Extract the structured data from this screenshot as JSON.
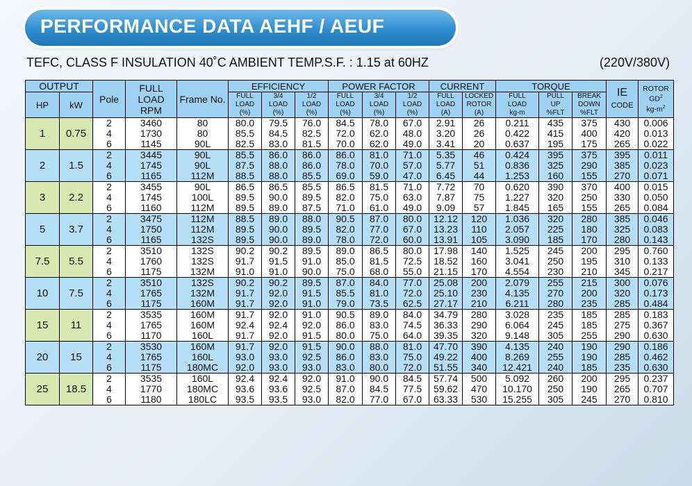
{
  "title": "PERFORMANCE DATA  AEHF / AEUF",
  "subtitle": "TEFC, CLASS F INSULATION 40˚C AMBIENT TEMP.S.F. : 1.15 at 60HZ",
  "voltage": "(220V/380V)",
  "headers": {
    "output": "OUTPUT",
    "hp": "HP",
    "kw": "kW",
    "pole": "Pole",
    "full_load_rpm": [
      "FULL",
      "LOAD",
      "RPM"
    ],
    "frame_no": "Frame No.",
    "efficiency": "EFFICIENCY",
    "power_factor": "POWER FACTOR",
    "current": "CURRENT",
    "torque": "TORQUE",
    "ie_code": [
      "IE",
      "CODE"
    ],
    "rotor": [
      "ROTOR",
      "GD",
      "2",
      "kg-m",
      "2"
    ],
    "sub": {
      "eff_full": [
        "FULL",
        "LOAD",
        "(%)"
      ],
      "eff_34": [
        "3/4",
        "LOAD",
        "(%)"
      ],
      "eff_12": [
        "1/2",
        "LOAD",
        "(%)"
      ],
      "pf_full": [
        "FULL",
        "LOAD",
        "(%)"
      ],
      "pf_34": [
        "3/4",
        "LOAD",
        "(%)"
      ],
      "pf_12": [
        "1/2",
        "LOAD",
        "(%)"
      ],
      "cur_full": [
        "FULL",
        "LOAD",
        "(A)"
      ],
      "cur_locked": [
        "LOCKED",
        "ROTOR",
        "(A)"
      ],
      "tq_full": [
        "FULL",
        "LOAD",
        "kg-m"
      ],
      "tq_pull": [
        "PULL",
        "UP",
        "%FLT"
      ],
      "tq_break": [
        "BREAK",
        "DOWN",
        "%FLT"
      ]
    }
  },
  "groups": [
    {
      "hp": "1",
      "kw": "0.75",
      "color": "green",
      "rows": [
        [
          "2",
          "3460",
          "80",
          "80.0",
          "79.5",
          "76.0",
          "84.5",
          "78.0",
          "67.0",
          "2.91",
          "26",
          "0.211",
          "435",
          "375",
          "430",
          "0.006"
        ],
        [
          "4",
          "1730",
          "80",
          "85.5",
          "84.5",
          "82.5",
          "72.0",
          "62.0",
          "48.0",
          "3.20",
          "26",
          "0.422",
          "415",
          "400",
          "420",
          "0.013"
        ],
        [
          "6",
          "1145",
          "90L",
          "82.5",
          "83.0",
          "81.5",
          "70.0",
          "62.0",
          "49.0",
          "3.41",
          "20",
          "0.637",
          "195",
          "175",
          "265",
          "0.022"
        ]
      ]
    },
    {
      "hp": "2",
      "kw": "1.5",
      "color": "blue",
      "rows": [
        [
          "2",
          "3445",
          "90L",
          "85.5",
          "86.0",
          "86.0",
          "86.0",
          "81.0",
          "71.0",
          "5.35",
          "46",
          "0.424",
          "395",
          "375",
          "395",
          "0.011"
        ],
        [
          "4",
          "1745",
          "90L",
          "87.5",
          "88.0",
          "86.0",
          "78.0",
          "70.0",
          "57.0",
          "5.77",
          "51",
          "0.836",
          "325",
          "290",
          "385",
          "0.023"
        ],
        [
          "6",
          "1165",
          "112M",
          "88.5",
          "88.0",
          "85.5",
          "69.0",
          "59.0",
          "47.0",
          "6.45",
          "44",
          "1.253",
          "160",
          "155",
          "270",
          "0.071"
        ]
      ]
    },
    {
      "hp": "3",
      "kw": "2.2",
      "color": "green",
      "rows": [
        [
          "2",
          "3455",
          "90L",
          "86.5",
          "86.5",
          "85.5",
          "86.5",
          "81.5",
          "71.0",
          "7.72",
          "70",
          "0.620",
          "390",
          "370",
          "400",
          "0.015"
        ],
        [
          "4",
          "1745",
          "100L",
          "89.5",
          "90.0",
          "89.5",
          "82.0",
          "75.0",
          "63.0",
          "7.87",
          "75",
          "1.227",
          "320",
          "250",
          "330",
          "0.050"
        ],
        [
          "6",
          "1160",
          "112M",
          "89.5",
          "89.0",
          "87.5",
          "71.0",
          "61.0",
          "49.0",
          "9.09",
          "57",
          "1.845",
          "165",
          "155",
          "265",
          "0.084"
        ]
      ]
    },
    {
      "hp": "5",
      "kw": "3.7",
      "color": "blue",
      "rows": [
        [
          "2",
          "3475",
          "112M",
          "88.5",
          "89.0",
          "88.0",
          "90.5",
          "87.0",
          "80.0",
          "12.12",
          "120",
          "1.036",
          "320",
          "280",
          "385",
          "0.046"
        ],
        [
          "4",
          "1750",
          "112M",
          "89.5",
          "90.0",
          "89.5",
          "82.0",
          "77.0",
          "67.0",
          "13.23",
          "110",
          "2.057",
          "225",
          "180",
          "325",
          "0.083"
        ],
        [
          "6",
          "1165",
          "132S",
          "89.5",
          "90.0",
          "89.0",
          "78.0",
          "72.0",
          "60.0",
          "13.91",
          "105",
          "3.090",
          "185",
          "170",
          "280",
          "0.143"
        ]
      ]
    },
    {
      "hp": "7.5",
      "kw": "5.5",
      "color": "green",
      "rows": [
        [
          "2",
          "3510",
          "132S",
          "90.2",
          "90.2",
          "89.5",
          "89.0",
          "86.5",
          "80.0",
          "17.98",
          "140",
          "1.525",
          "245",
          "200",
          "295",
          "0.760"
        ],
        [
          "4",
          "1760",
          "132S",
          "91.7",
          "91.5",
          "91.0",
          "85.0",
          "81.5",
          "72.5",
          "18.52",
          "160",
          "3.041",
          "250",
          "195",
          "310",
          "0.133"
        ],
        [
          "6",
          "1175",
          "132M",
          "91.0",
          "91.0",
          "90.0",
          "75.0",
          "68.0",
          "55.0",
          "21.15",
          "170",
          "4.554",
          "230",
          "210",
          "345",
          "0.217"
        ]
      ]
    },
    {
      "hp": "10",
      "kw": "7.5",
      "color": "blue",
      "rows": [
        [
          "2",
          "3510",
          "132S",
          "90.2",
          "90.2",
          "89.5",
          "87.0",
          "84.0",
          "77.0",
          "25.08",
          "200",
          "2.079",
          "255",
          "215",
          "300",
          "0.076"
        ],
        [
          "4",
          "1765",
          "132M",
          "91.7",
          "92.0",
          "91.5",
          "85.5",
          "81.0",
          "72.0",
          "25.10",
          "230",
          "4.135",
          "270",
          "200",
          "320",
          "0.173"
        ],
        [
          "6",
          "1175",
          "160M",
          "91.7",
          "92.0",
          "91.0",
          "79.0",
          "73.5",
          "62.5",
          "27.17",
          "210",
          "6.211",
          "280",
          "235",
          "285",
          "0.484"
        ]
      ]
    },
    {
      "hp": "15",
      "kw": "11",
      "color": "green",
      "rows": [
        [
          "2",
          "3535",
          "160M",
          "91.7",
          "92.0",
          "91.0",
          "90.5",
          "89.0",
          "84.0",
          "34.79",
          "280",
          "3.028",
          "235",
          "185",
          "285",
          "0.183"
        ],
        [
          "4",
          "1765",
          "160M",
          "92.4",
          "92.4",
          "92.0",
          "86.0",
          "83.0",
          "74.5",
          "36.33",
          "290",
          "6.064",
          "245",
          "185",
          "275",
          "0.367"
        ],
        [
          "6",
          "1170",
          "160L",
          "91.7",
          "92.0",
          "91.5",
          "80.0",
          "75.0",
          "64.0",
          "39.35",
          "320",
          "9.148",
          "305",
          "255",
          "290",
          "0.630"
        ]
      ]
    },
    {
      "hp": "20",
      "kw": "15",
      "color": "blue",
      "rows": [
        [
          "2",
          "3530",
          "160M",
          "91.7",
          "92.0",
          "91.5",
          "90.0",
          "88.0",
          "81.0",
          "47.70",
          "390",
          "4.135",
          "240",
          "190",
          "290",
          "0.186"
        ],
        [
          "4",
          "1765",
          "160L",
          "93.0",
          "93.0",
          "92.5",
          "86.0",
          "83.0",
          "75.0",
          "49.22",
          "400",
          "8.269",
          "255",
          "190",
          "285",
          "0.462"
        ],
        [
          "6",
          "1175",
          "180MC",
          "92.0",
          "93.0",
          "93.0",
          "83.0",
          "80.0",
          "72.0",
          "51.55",
          "340",
          "12.421",
          "240",
          "185",
          "235",
          "0.630"
        ]
      ]
    },
    {
      "hp": "25",
      "kw": "18.5",
      "color": "green",
      "rows": [
        [
          "2",
          "3535",
          "160L",
          "92.4",
          "92.4",
          "92.0",
          "91.0",
          "90.0",
          "84.5",
          "57.74",
          "500",
          "5.092",
          "260",
          "200",
          "295",
          "0.237"
        ],
        [
          "4",
          "1770",
          "180MC",
          "93.6",
          "93.6",
          "92.5",
          "87.0",
          "84.5",
          "77.5",
          "59.62",
          "470",
          "10.170",
          "250",
          "190",
          "265",
          "0.707"
        ],
        [
          "6",
          "1180",
          "180LC",
          "93.5",
          "93.5",
          "93.0",
          "82.0",
          "77.0",
          "67.0",
          "63.33",
          "530",
          "15.255",
          "305",
          "245",
          "270",
          "0.810"
        ]
      ]
    }
  ]
}
